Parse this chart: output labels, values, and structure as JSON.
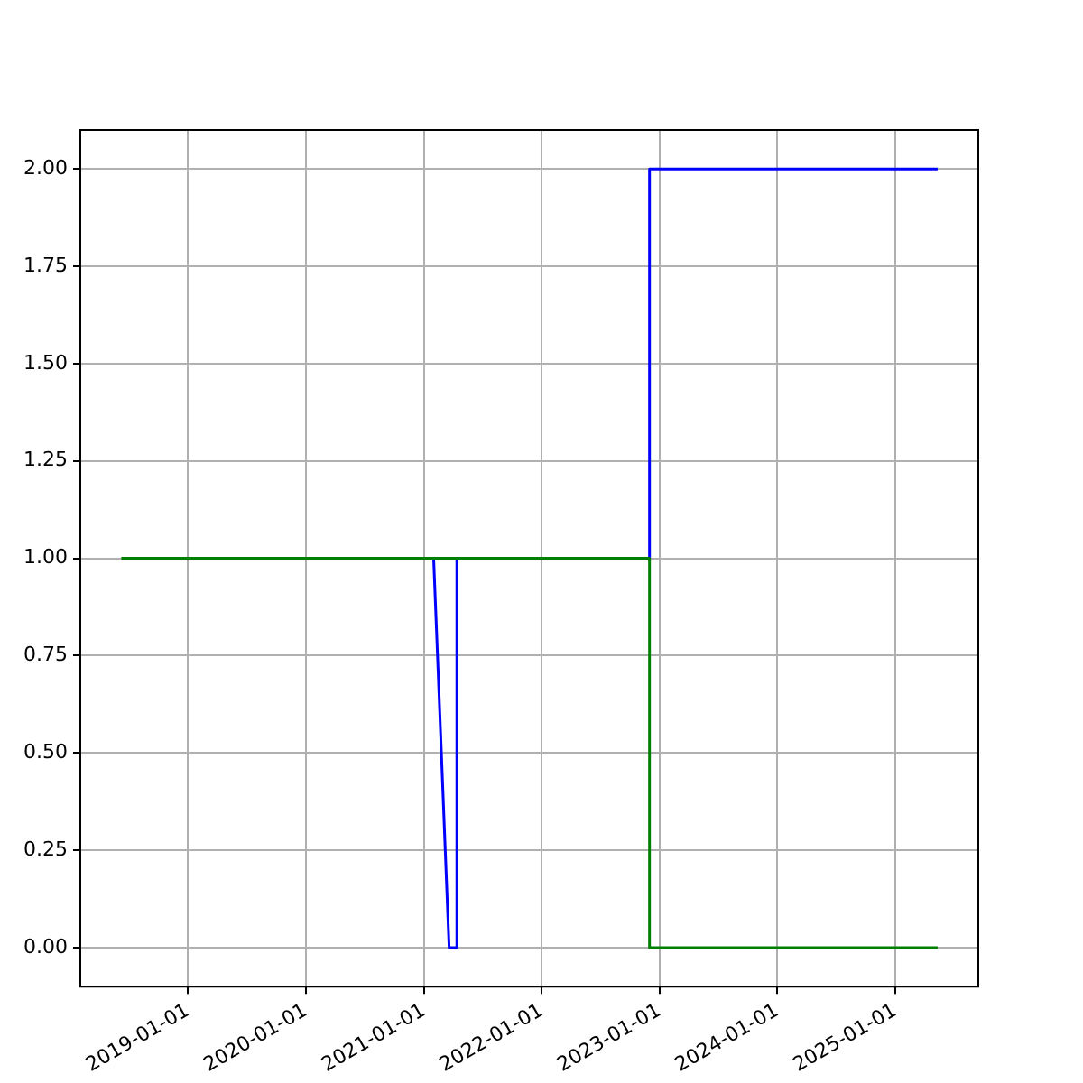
{
  "chart_data": {
    "type": "line",
    "xlim": [
      "2018-02-01",
      "2025-09-15"
    ],
    "ylim": [
      -0.1,
      2.1
    ],
    "xticks": [
      "2019-01-01",
      "2020-01-01",
      "2021-01-01",
      "2022-01-01",
      "2023-01-01",
      "2024-01-01",
      "2025-01-01"
    ],
    "yticks": [
      {
        "value": 0,
        "label": "0.00"
      },
      {
        "value": 0.25,
        "label": "0.25"
      },
      {
        "value": 0.5,
        "label": "0.50"
      },
      {
        "value": 0.75,
        "label": "0.75"
      },
      {
        "value": 1,
        "label": "1.00"
      },
      {
        "value": 1.25,
        "label": "1.25"
      },
      {
        "value": 1.5,
        "label": "1.50"
      },
      {
        "value": 1.75,
        "label": "1.75"
      },
      {
        "value": 2,
        "label": "2.00"
      }
    ],
    "grid": true,
    "legend": false,
    "marker": "none",
    "line_style": "solid",
    "series": [
      {
        "color": "#0000ff",
        "x": [
          "2021-01-31",
          "2021-03-20",
          "2021-04-13",
          "2021-04-13",
          "2022-12-01",
          "2022-12-01",
          "2025-05-12"
        ],
        "values": [
          1,
          0,
          0,
          1,
          1,
          2,
          2
        ]
      },
      {
        "color": "#008000",
        "x": [
          "2018-06-08",
          "2022-12-01",
          "2022-12-01",
          "2025-05-12"
        ],
        "values": [
          1,
          1,
          0,
          0
        ]
      }
    ]
  }
}
